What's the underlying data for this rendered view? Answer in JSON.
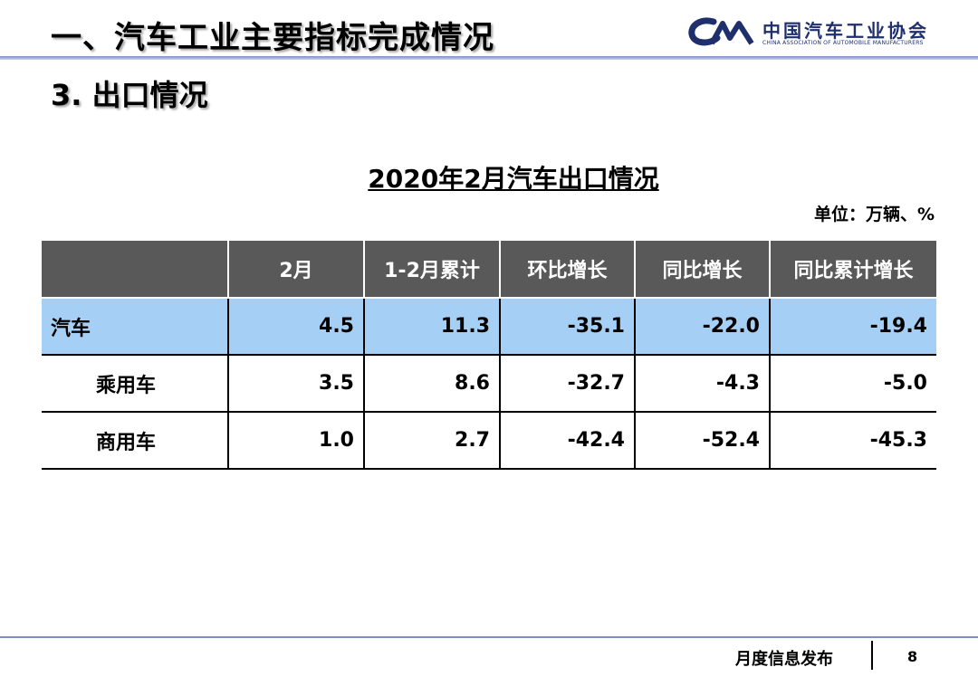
{
  "header": {
    "title": "一、汽车工业主要指标完成情况",
    "logo_cn": "中国汽车工业协会",
    "logo_en": "CHINA ASSOCIATION OF AUTOMOBILE MANUFACTURERS",
    "logo_color": "#1e2f6b"
  },
  "section": {
    "title": "3. 出口情况"
  },
  "table": {
    "title": "2020年2月汽车出口情况",
    "unit": "单位：万辆、%",
    "headers": [
      "",
      "2月",
      "1-2月累计",
      "环比增长",
      "同比增长",
      "同比累计增长"
    ],
    "rows": [
      {
        "name": "汽车",
        "values": [
          "4.5",
          "11.3",
          "-35.1",
          "-22.0",
          "-19.4"
        ]
      },
      {
        "name": "乘用车",
        "values": [
          "3.5",
          "8.6",
          "-32.7",
          "-4.3",
          "-5.0"
        ]
      },
      {
        "name": "商用车",
        "values": [
          "1.0",
          "2.7",
          "-42.4",
          "-52.4",
          "-45.3"
        ]
      }
    ],
    "header_bg": "#595959",
    "total_row_bg": "#a6cff5"
  },
  "footer": {
    "text": "月度信息发布",
    "page": "8"
  }
}
